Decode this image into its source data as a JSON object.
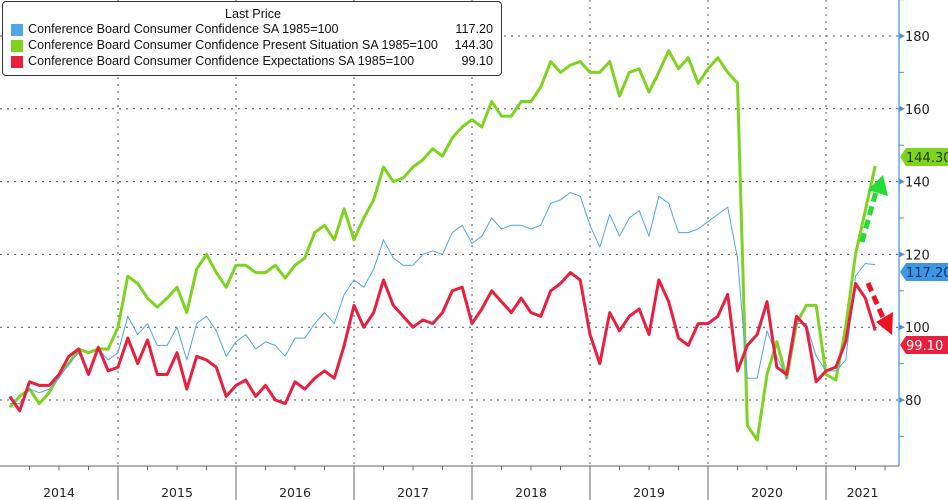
{
  "chart_data": {
    "type": "line",
    "title": "",
    "legend_header": "Last Price",
    "legend_position": "top-left",
    "x_start": "2014-01",
    "frequency": "monthly",
    "year_labels": [
      "2014",
      "2015",
      "2016",
      "2017",
      "2018",
      "2019",
      "2020",
      "2021"
    ],
    "ylim": [
      66,
      190
    ],
    "yticks": [
      80,
      100,
      120,
      140,
      160,
      180
    ],
    "ytick_labels": [
      "80",
      "100",
      "120",
      "140",
      "160",
      "180"
    ],
    "grid": true,
    "series": [
      {
        "name": "Conference Board Consumer Confidence SA 1985=100",
        "last": "117.20",
        "color": "#4da6e8",
        "values": [
          79,
          79,
          83,
          82,
          83,
          86,
          90,
          93,
          87,
          94,
          91,
          93,
          103,
          98,
          101,
          95,
          95,
          100,
          91,
          101,
          103,
          99,
          92,
          96,
          98,
          94,
          96,
          95,
          92,
          97,
          97,
          101,
          104,
          101,
          109,
          113,
          111,
          116,
          124,
          119,
          117,
          117,
          120,
          121,
          120,
          126,
          128,
          123,
          125,
          130,
          127,
          128,
          128,
          127,
          128,
          134,
          135,
          137,
          136,
          128,
          122,
          131,
          125,
          130,
          132,
          125,
          136,
          134,
          126,
          126,
          127,
          129,
          131,
          133,
          119,
          86,
          86,
          99,
          92,
          86,
          101,
          101,
          92,
          88,
          88,
          91,
          114,
          117.5,
          117.2
        ]
      },
      {
        "name": "Conference Board Consumer Confidence Present Situation SA 1985=100",
        "last": "144.30",
        "color": "#7ed321",
        "values": [
          78,
          81,
          83,
          79,
          82,
          87,
          90,
          94,
          93,
          94,
          94,
          100,
          114,
          112,
          108,
          105.5,
          108,
          111,
          104,
          116,
          120,
          115,
          111,
          117,
          117,
          115,
          115,
          117,
          113.5,
          117,
          119,
          126,
          128,
          124,
          132.5,
          124,
          130,
          135,
          144,
          140,
          141,
          144,
          146,
          149,
          147,
          152,
          155,
          157,
          155,
          162,
          158,
          158,
          162,
          162,
          166,
          173,
          170,
          172,
          173,
          170,
          170,
          173,
          163.5,
          170,
          171,
          164.6,
          170,
          176,
          171,
          174,
          167,
          171,
          174,
          170,
          167,
          73,
          69,
          87,
          96,
          86,
          101,
          106,
          106,
          87,
          85.5,
          100,
          120,
          132,
          144.3
        ]
      },
      {
        "name": "Conference Board Consumer Confidence Expectations SA 1985=100",
        "last": "99.10",
        "color": "#e8203f",
        "values": [
          81,
          77,
          85,
          84,
          84,
          87,
          92,
          94,
          87,
          94.5,
          88,
          89,
          97,
          90,
          96.5,
          87,
          87,
          93,
          83,
          92,
          91,
          89,
          81,
          84,
          85.5,
          81,
          84,
          80,
          79,
          85,
          83,
          86,
          88,
          86,
          95,
          106,
          100,
          104,
          113,
          106,
          103,
          100,
          102,
          101,
          104,
          110,
          111,
          101,
          105,
          110,
          107,
          104,
          108,
          104,
          103,
          110,
          112,
          115,
          113,
          98,
          90,
          104,
          99,
          103,
          105,
          98,
          113,
          107,
          97,
          95,
          101,
          101,
          103,
          109,
          88,
          95,
          98,
          107,
          89,
          87,
          103,
          100,
          85,
          88,
          89,
          96,
          112,
          108,
          99.1
        ]
      }
    ],
    "annotations": [
      {
        "type": "arrow",
        "direction": "up",
        "series": "Present Situation",
        "color": "#22dd33"
      },
      {
        "type": "arrow",
        "direction": "down",
        "series": "Expectations",
        "color": "#ee1122"
      }
    ]
  }
}
